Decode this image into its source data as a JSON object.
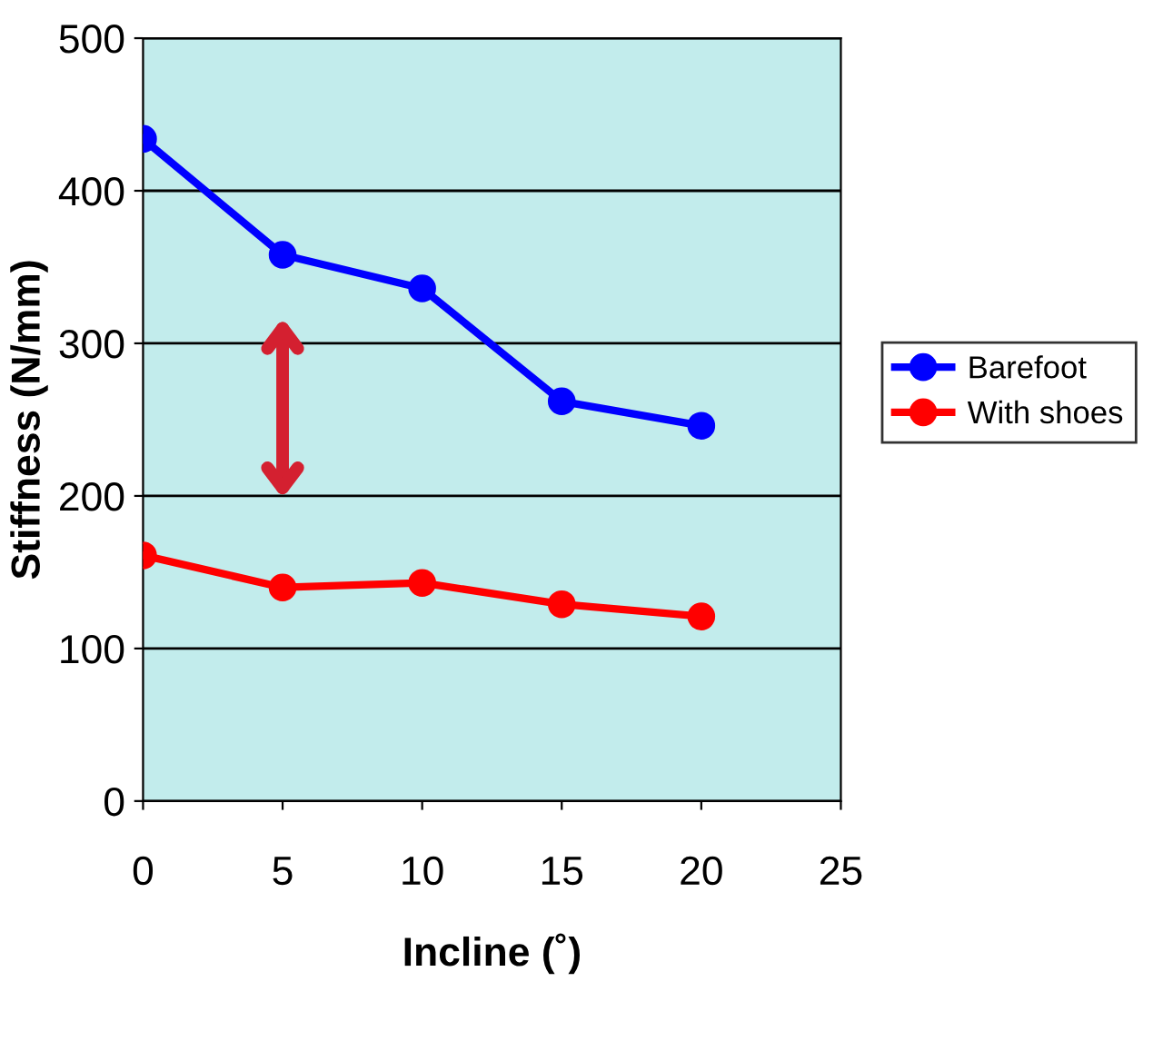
{
  "chart_data": {
    "type": "line",
    "xlabel": "Incline (˚)",
    "ylabel": "Stiffness (N/mm)",
    "x": [
      0,
      5,
      10,
      15,
      20
    ],
    "series": [
      {
        "name": "Barefoot",
        "color": "#0000ff",
        "values": [
          434,
          358,
          336,
          262,
          246
        ]
      },
      {
        "name": "With shoes",
        "color": "#ff0000",
        "values": [
          161,
          140,
          143,
          129,
          121
        ]
      }
    ],
    "xlim": [
      0,
      25
    ],
    "xticks": [
      0,
      5,
      10,
      15,
      20,
      25
    ],
    "ylim": [
      0,
      500
    ],
    "yticks": [
      0,
      100,
      200,
      300,
      400,
      500
    ],
    "grid": "y",
    "legend": "right",
    "marker": "circle",
    "line_style": "solid"
  }
}
